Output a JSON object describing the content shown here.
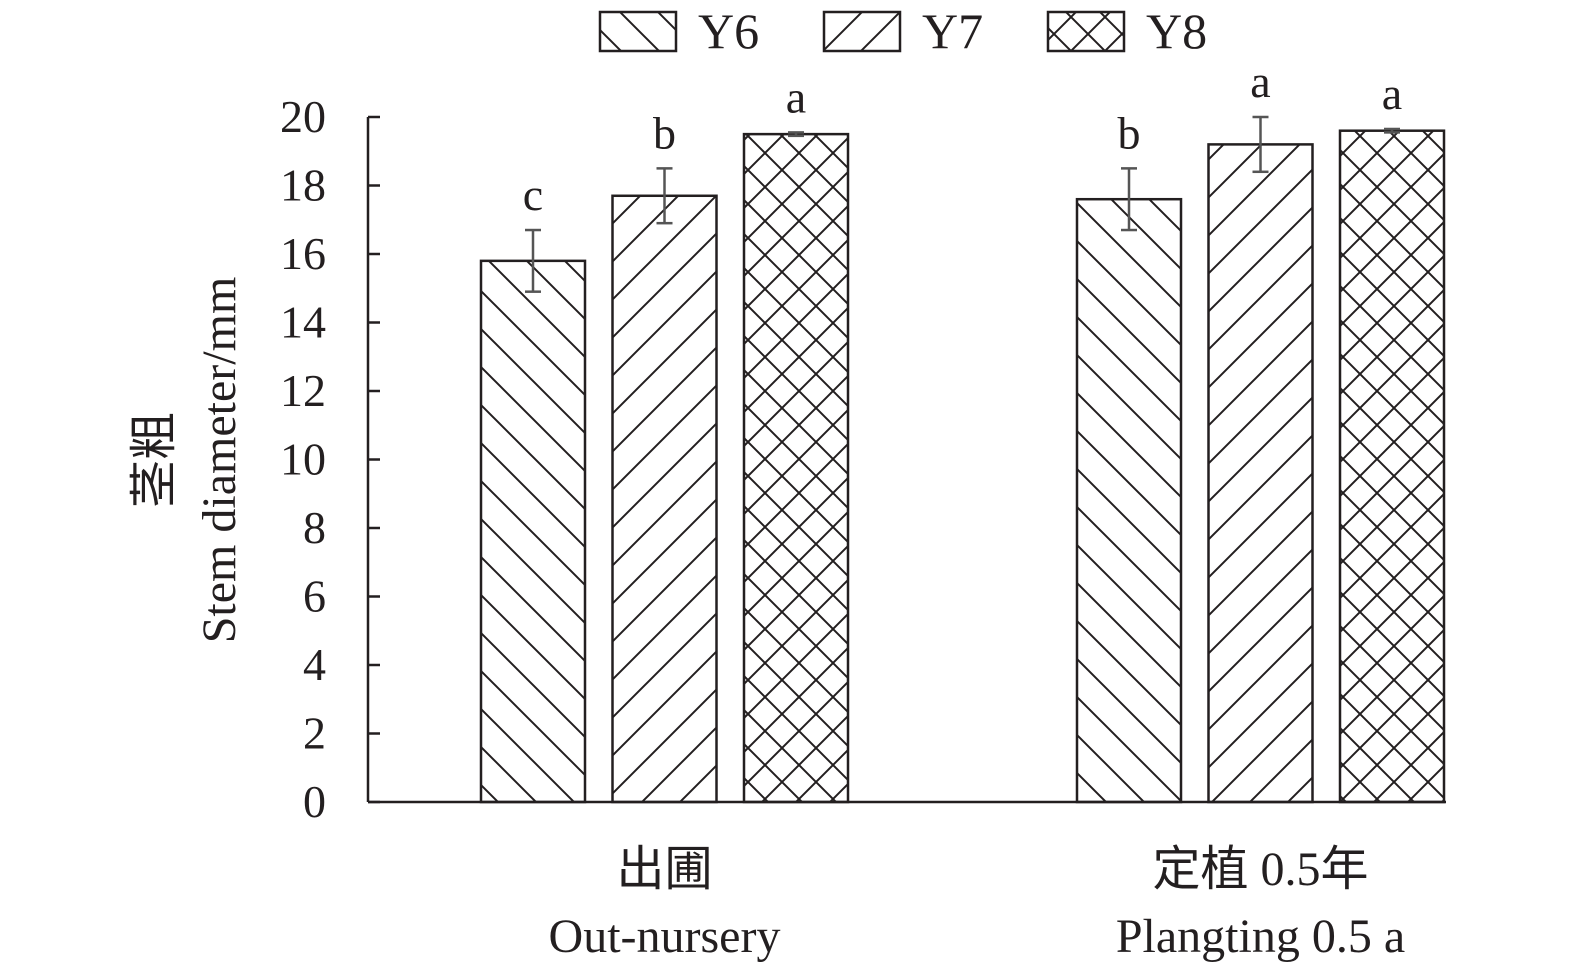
{
  "chart_data": {
    "type": "bar",
    "categories": [
      "出圃",
      "定植 0.5年"
    ],
    "categories_en": [
      "Out-nursery",
      "Plangting 0.5 a"
    ],
    "series": [
      {
        "name": "Y6",
        "values": [
          15.8,
          17.6
        ],
        "errors": [
          0.9,
          0.9
        ],
        "letters": [
          "c",
          "b"
        ],
        "pattern": "diagonal-down"
      },
      {
        "name": "Y7",
        "values": [
          17.7,
          19.2
        ],
        "errors": [
          0.8,
          0.8
        ],
        "letters": [
          "b",
          "a"
        ],
        "pattern": "diagonal-up"
      },
      {
        "name": "Y8",
        "values": [
          19.5,
          19.6
        ],
        "errors": [
          0.05,
          0.05
        ],
        "letters": [
          "a",
          "a"
        ],
        "pattern": "crosshatch"
      }
    ],
    "ylabel_cn": "茎粗",
    "ylabel_en": "Stem diameter/mm",
    "ylim": [
      0,
      20
    ],
    "yticks": [
      0,
      2,
      4,
      6,
      8,
      10,
      12,
      14,
      16,
      18,
      20
    ],
    "grid": false,
    "legend_position": "top"
  },
  "colors": {
    "ink": "#231f20",
    "fill": "#ffffff"
  }
}
